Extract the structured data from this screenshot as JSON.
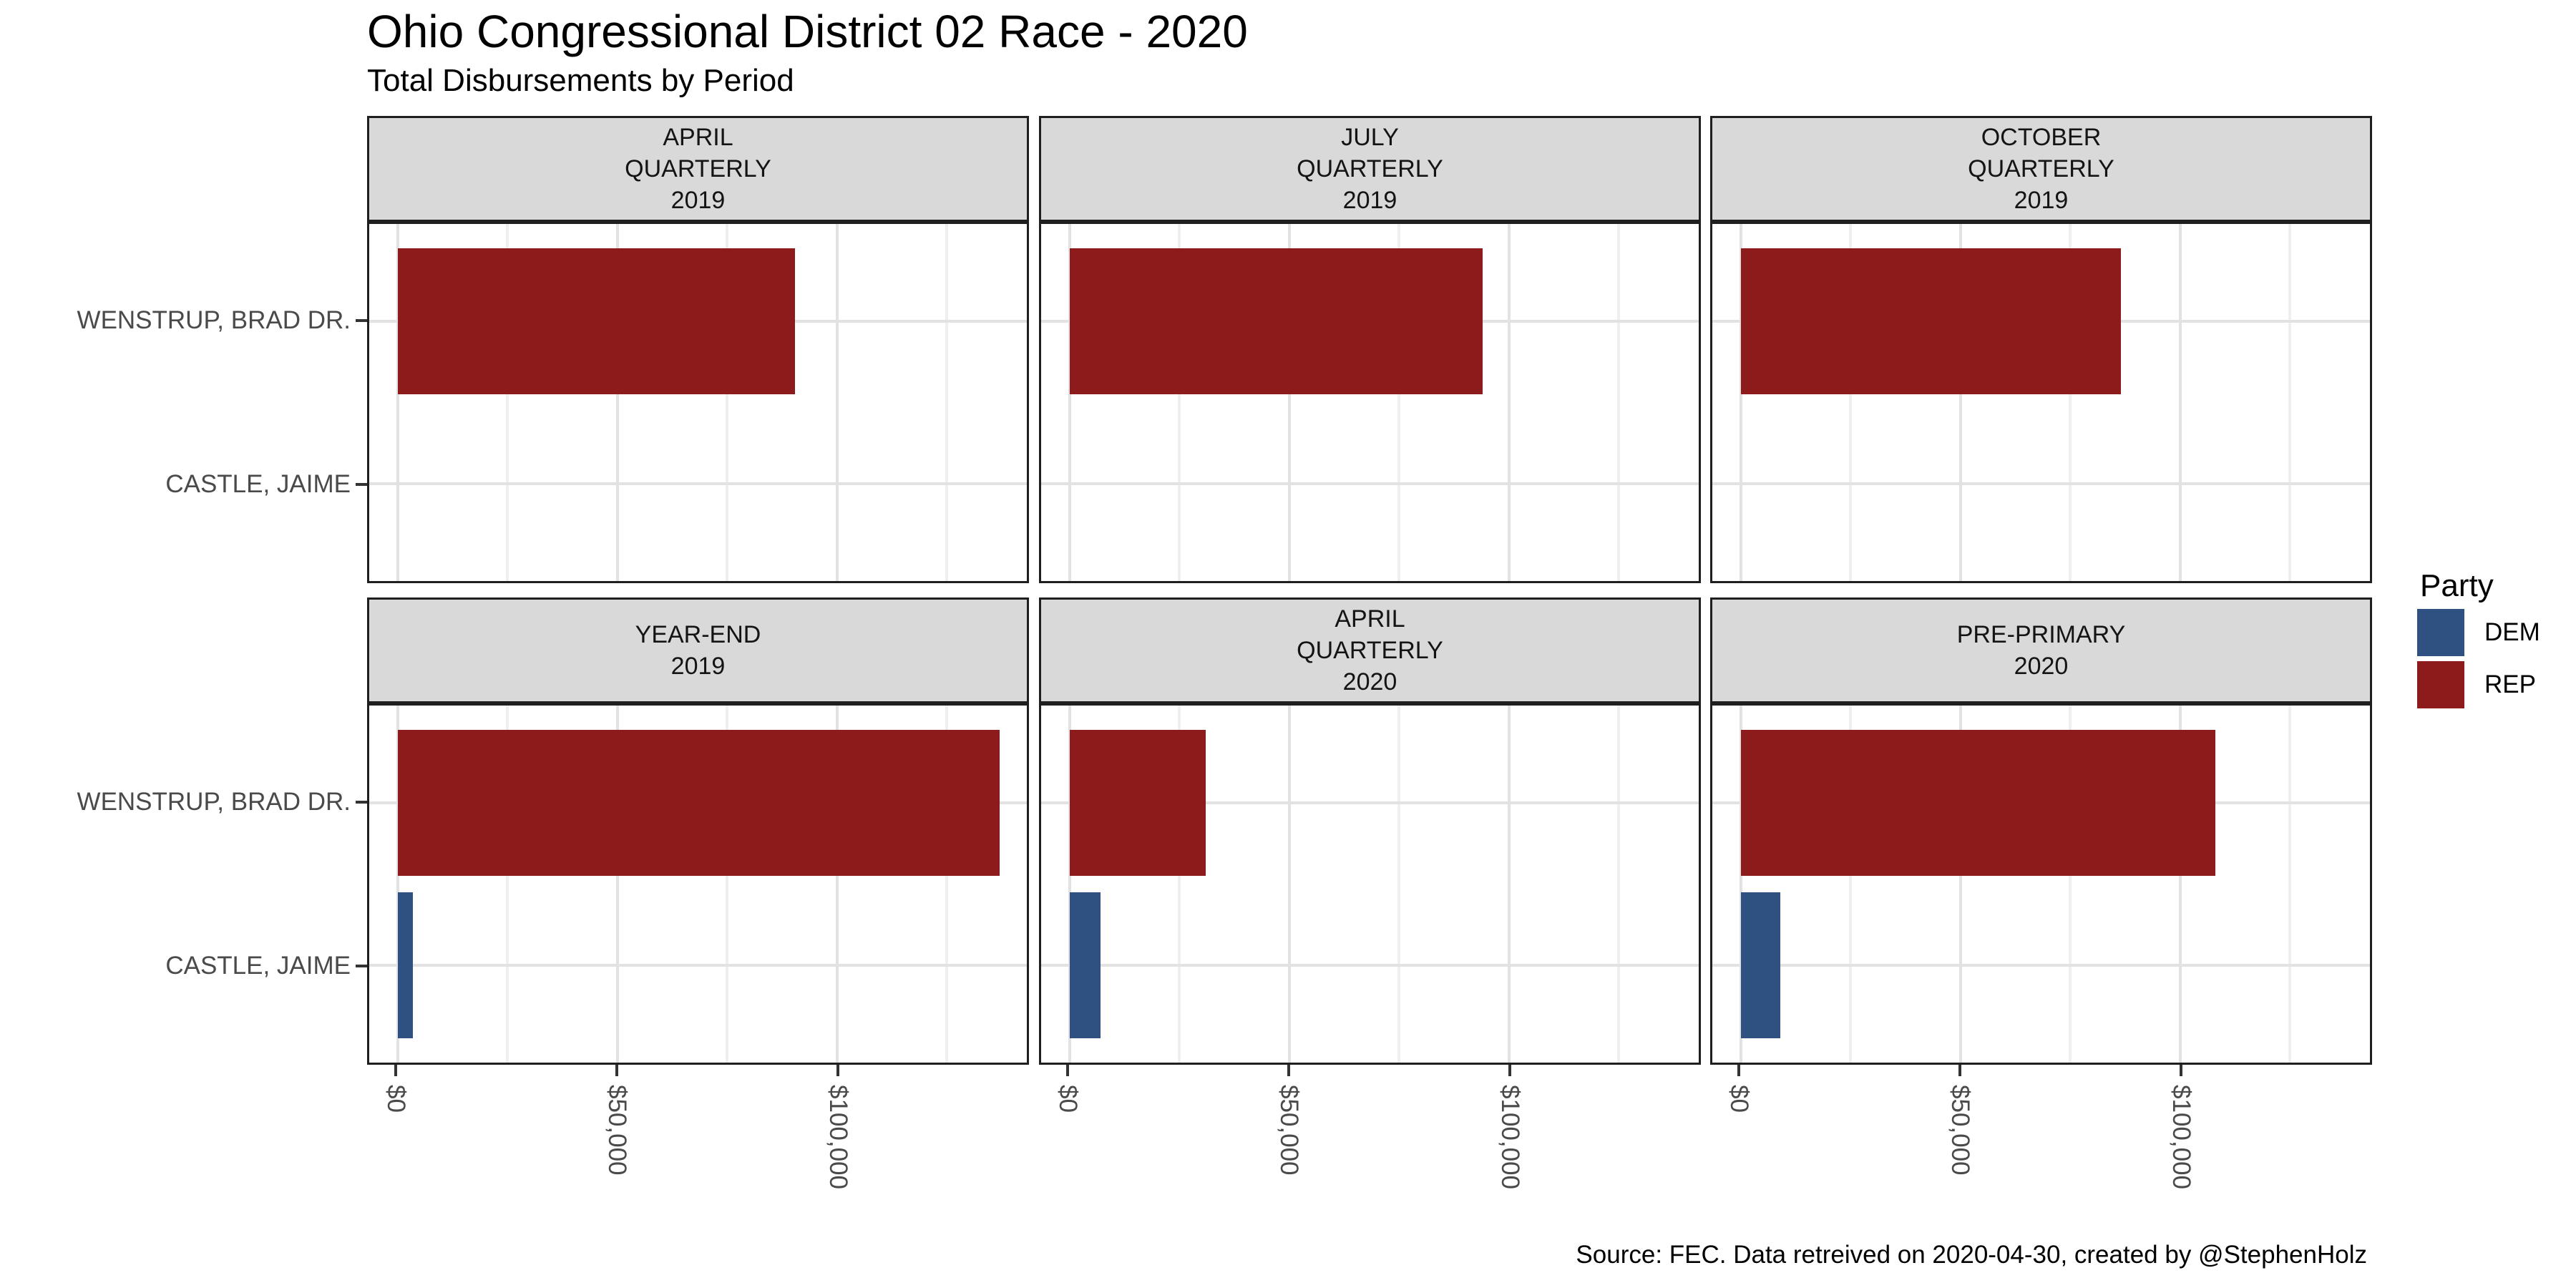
{
  "chart_data": {
    "type": "bar",
    "orientation": "horizontal",
    "title": "Ohio Congressional District 02 Race - 2020",
    "subtitle": "Total Disbursements by Period",
    "caption": "Source: FEC. Data retreived on 2020-04-30, created by @StephenHolz",
    "categories": [
      "WENSTRUP, BRAD DR.",
      "CASTLE, JAIME"
    ],
    "category_parties": [
      "REP",
      "DEM"
    ],
    "party_colors": {
      "DEM": "#2E5181",
      "REP": "#8E1B1B"
    },
    "x_tick_labels": [
      "$0",
      "$50,000",
      "$100,000"
    ],
    "x_tick_values": [
      0,
      50000,
      100000
    ],
    "x_minor_values": [
      25000,
      75000,
      125000
    ],
    "xlim": [
      -6480,
      143200
    ],
    "grid": true,
    "legend_position": "right",
    "legend": {
      "title": "Party",
      "entries": [
        {
          "label": "DEM",
          "color": "#2E5181"
        },
        {
          "label": "REP",
          "color": "#8E1B1B"
        }
      ]
    },
    "facets": [
      {
        "label": "APRIL QUARTERLY 2019",
        "label_lines": [
          "APRIL",
          "QUARTERLY",
          "2019"
        ],
        "values": [
          90500,
          null
        ]
      },
      {
        "label": "JULY QUARTERLY 2019",
        "label_lines": [
          "JULY",
          "QUARTERLY",
          "2019"
        ],
        "values": [
          94000,
          null
        ]
      },
      {
        "label": "OCTOBER QUARTERLY 2019",
        "label_lines": [
          "OCTOBER",
          "QUARTERLY",
          "2019"
        ],
        "values": [
          86500,
          null
        ]
      },
      {
        "label": "YEAR-END 2019",
        "label_lines": [
          "YEAR-END",
          "2019"
        ],
        "values": [
          137000,
          3500
        ]
      },
      {
        "label": "APRIL QUARTERLY 2020",
        "label_lines": [
          "APRIL",
          "QUARTERLY",
          "2020"
        ],
        "values": [
          31000,
          7000
        ]
      },
      {
        "label": "PRE-PRIMARY 2020",
        "label_lines": [
          "PRE-PRIMARY",
          "2020"
        ],
        "values": [
          108000,
          9000
        ]
      }
    ]
  },
  "colors": {
    "strip_bg": "#D9D9D9",
    "panel_border": "#1F1F1F",
    "grid_major": "#E2E2E2",
    "grid_minor": "#EFEFEF",
    "axis_text": "#4A4A4A",
    "tick": "#333333"
  }
}
